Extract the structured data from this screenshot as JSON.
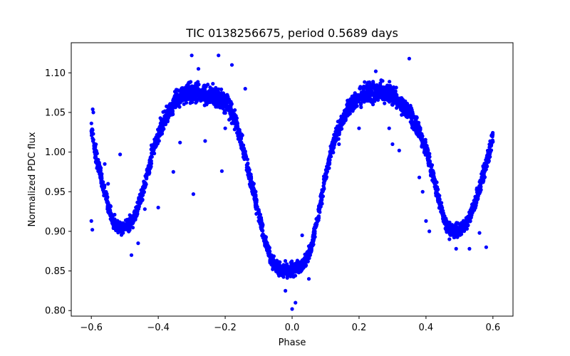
{
  "chart_data": {
    "type": "scatter",
    "title": "TIC 0138256675, period 0.5689 days",
    "xlabel": "Phase",
    "ylabel": "Normalized PDC flux",
    "xlim": [
      -0.66,
      0.66
    ],
    "ylim": [
      0.793,
      1.138
    ],
    "xticks": [
      -0.6,
      -0.4,
      -0.2,
      0.0,
      0.2,
      0.4,
      0.6
    ],
    "xtick_labels": [
      "−0.6",
      "−0.4",
      "−0.2",
      "0.0",
      "0.2",
      "0.4",
      "0.6"
    ],
    "yticks": [
      0.8,
      0.85,
      0.9,
      0.95,
      1.0,
      1.05,
      1.1
    ],
    "ytick_labels": [
      "0.80",
      "0.85",
      "0.90",
      "0.95",
      "1.00",
      "1.05",
      "1.10"
    ],
    "grid": false,
    "legend": "none",
    "marker_color": "#0000ff",
    "series": [
      {
        "x": [
          -0.6,
          -0.59,
          -0.58,
          -0.57,
          -0.56,
          -0.55,
          -0.54,
          -0.53,
          -0.52,
          -0.51,
          -0.5,
          -0.49,
          -0.48,
          -0.47,
          -0.46,
          -0.45,
          -0.44,
          -0.43,
          -0.42,
          -0.41,
          -0.4,
          -0.39,
          -0.38,
          -0.37,
          -0.36,
          -0.35,
          -0.34,
          -0.33,
          -0.32,
          -0.31,
          -0.3,
          -0.29,
          -0.28,
          -0.27,
          -0.26,
          -0.25,
          -0.24,
          -0.23,
          -0.22,
          -0.21,
          -0.2,
          -0.19,
          -0.18,
          -0.17,
          -0.16,
          -0.15,
          -0.14,
          -0.13,
          -0.12,
          -0.11,
          -0.1,
          -0.09,
          -0.08,
          -0.07,
          -0.06,
          -0.05,
          -0.04,
          -0.03,
          -0.02,
          -0.01,
          0.0,
          0.01,
          0.02,
          0.03,
          0.04,
          0.05,
          0.06,
          0.07,
          0.08,
          0.09,
          0.1,
          0.11,
          0.12,
          0.13,
          0.14,
          0.15,
          0.16,
          0.17,
          0.18,
          0.19,
          0.2,
          0.21,
          0.22,
          0.23,
          0.24,
          0.25,
          0.26,
          0.27,
          0.28,
          0.29,
          0.3,
          0.31,
          0.32,
          0.33,
          0.34,
          0.35,
          0.36,
          0.37,
          0.38,
          0.39,
          0.4,
          0.41,
          0.42,
          0.43,
          0.44,
          0.45,
          0.46,
          0.47,
          0.48,
          0.49,
          0.5,
          0.51,
          0.52,
          0.53,
          0.54,
          0.55,
          0.56,
          0.57,
          0.58,
          0.59,
          0.6
        ],
        "y": [
          1.03,
          1.005,
          0.985,
          0.968,
          0.95,
          0.932,
          0.918,
          0.91,
          0.905,
          0.903,
          0.905,
          0.908,
          0.913,
          0.92,
          0.93,
          0.945,
          0.96,
          0.978,
          0.995,
          1.01,
          1.022,
          1.033,
          1.042,
          1.05,
          1.057,
          1.063,
          1.068,
          1.072,
          1.074,
          1.075,
          1.075,
          1.075,
          1.074,
          1.073,
          1.072,
          1.071,
          1.07,
          1.069,
          1.068,
          1.066,
          1.063,
          1.058,
          1.05,
          1.04,
          1.027,
          1.012,
          0.995,
          0.977,
          0.958,
          0.94,
          0.922,
          0.905,
          0.888,
          0.873,
          0.862,
          0.857,
          0.854,
          0.852,
          0.851,
          0.851,
          0.852,
          0.853,
          0.855,
          0.858,
          0.863,
          0.872,
          0.885,
          0.903,
          0.925,
          0.948,
          0.97,
          0.99,
          1.007,
          1.02,
          1.031,
          1.04,
          1.048,
          1.055,
          1.06,
          1.065,
          1.069,
          1.072,
          1.074,
          1.076,
          1.077,
          1.077,
          1.077,
          1.076,
          1.075,
          1.073,
          1.071,
          1.068,
          1.064,
          1.06,
          1.055,
          1.049,
          1.042,
          1.034,
          1.025,
          1.014,
          1.002,
          0.988,
          0.972,
          0.955,
          0.938,
          0.922,
          0.91,
          0.903,
          0.9,
          0.9,
          0.902,
          0.905,
          0.91,
          0.918,
          0.928,
          0.94,
          0.955,
          0.97,
          0.985,
          1.002,
          1.02
        ],
        "scatter": [
          0.015,
          0.015,
          0.014,
          0.014,
          0.013,
          0.013,
          0.012,
          0.012,
          0.012,
          0.012,
          0.012,
          0.012,
          0.012,
          0.013,
          0.013,
          0.014,
          0.014,
          0.015,
          0.015,
          0.015,
          0.016,
          0.016,
          0.017,
          0.017,
          0.017,
          0.018,
          0.018,
          0.018,
          0.018,
          0.018,
          0.018,
          0.018,
          0.018,
          0.018,
          0.018,
          0.018,
          0.018,
          0.018,
          0.018,
          0.018,
          0.018,
          0.017,
          0.017,
          0.016,
          0.016,
          0.015,
          0.015,
          0.014,
          0.014,
          0.014,
          0.013,
          0.013,
          0.012,
          0.012,
          0.012,
          0.012,
          0.012,
          0.012,
          0.012,
          0.012,
          0.012,
          0.012,
          0.012,
          0.012,
          0.012,
          0.012,
          0.012,
          0.013,
          0.013,
          0.013,
          0.014,
          0.014,
          0.015,
          0.015,
          0.016,
          0.016,
          0.017,
          0.017,
          0.017,
          0.018,
          0.018,
          0.018,
          0.018,
          0.018,
          0.018,
          0.018,
          0.018,
          0.018,
          0.018,
          0.018,
          0.018,
          0.018,
          0.018,
          0.018,
          0.017,
          0.017,
          0.017,
          0.016,
          0.016,
          0.015,
          0.015,
          0.014,
          0.014,
          0.013,
          0.013,
          0.012,
          0.012,
          0.012,
          0.012,
          0.012,
          0.012,
          0.012,
          0.012,
          0.013,
          0.013,
          0.014,
          0.014,
          0.015,
          0.015,
          0.015,
          0.015
        ],
        "outliers": [
          [
            -0.6,
            0.913
          ],
          [
            -0.597,
            0.902
          ],
          [
            -0.596,
            1.054
          ],
          [
            -0.594,
            1.05
          ],
          [
            -0.56,
            0.985
          ],
          [
            -0.55,
            0.96
          ],
          [
            -0.514,
            0.997
          ],
          [
            -0.48,
            0.87
          ],
          [
            -0.46,
            0.885
          ],
          [
            -0.44,
            0.928
          ],
          [
            -0.4,
            0.93
          ],
          [
            -0.355,
            0.975
          ],
          [
            -0.335,
            1.012
          ],
          [
            -0.3,
            1.122
          ],
          [
            -0.295,
            0.947
          ],
          [
            -0.28,
            1.105
          ],
          [
            -0.26,
            1.014
          ],
          [
            -0.22,
            1.122
          ],
          [
            -0.21,
            0.976
          ],
          [
            -0.2,
            1.03
          ],
          [
            -0.18,
            1.11
          ],
          [
            -0.14,
            1.08
          ],
          [
            0.0,
            0.802
          ],
          [
            0.01,
            0.81
          ],
          [
            -0.02,
            0.825
          ],
          [
            0.03,
            0.895
          ],
          [
            0.05,
            0.84
          ],
          [
            0.14,
            1.01
          ],
          [
            0.2,
            1.03
          ],
          [
            0.25,
            1.102
          ],
          [
            0.29,
            1.03
          ],
          [
            0.3,
            1.01
          ],
          [
            0.32,
            1.002
          ],
          [
            0.35,
            1.118
          ],
          [
            0.38,
            0.968
          ],
          [
            0.39,
            0.95
          ],
          [
            0.4,
            0.913
          ],
          [
            0.41,
            0.9
          ],
          [
            0.43,
            0.945
          ],
          [
            0.47,
            0.89
          ],
          [
            0.49,
            0.878
          ],
          [
            0.53,
            0.878
          ],
          [
            0.56,
            0.898
          ],
          [
            0.58,
            0.88
          ],
          [
            0.6,
            1.013
          ]
        ]
      }
    ]
  }
}
